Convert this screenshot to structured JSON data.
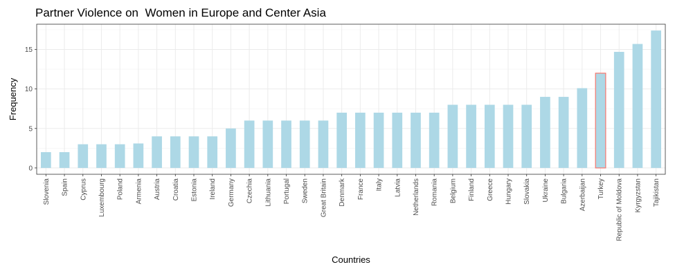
{
  "chart_data": {
    "type": "bar",
    "title": "Partner Violence on  Women in Europe and Center Asia",
    "xlabel": "Countries",
    "ylabel": "Frequency",
    "ylim": [
      -0.8,
      18.2
    ],
    "yticks": [
      0,
      5,
      10,
      15
    ],
    "grid": true,
    "bar_color": "#add8e6",
    "highlight_outline_color": "#f8766d",
    "categories": [
      "Slovenia",
      "Spain",
      "Cyprus",
      "Luxembourg",
      "Poland",
      "Armenia",
      "Austria",
      "Croatia",
      "Estonia",
      "Ireland",
      "Germany",
      "Czechia",
      "Lithuania",
      "Portugal",
      "Sweden",
      "Great Britain",
      "Denmark",
      "France",
      "Italy",
      "Latvia",
      "Netherlands",
      "Romania",
      "Belgium",
      "Finland",
      "Greece",
      "Hungary",
      "Slovakia",
      "Ukraine",
      "Bulgaria",
      "Azerbaijan",
      "Turkey",
      "Republic of Moldova",
      "Kyrgyzstan",
      "Tajikistan"
    ],
    "values": [
      2,
      2,
      3,
      3,
      3,
      3.1,
      4,
      4,
      4,
      4,
      5,
      6,
      6,
      6,
      6,
      6,
      7,
      7,
      7,
      7,
      7,
      7,
      8,
      8,
      8,
      8,
      8,
      9,
      9,
      10.1,
      12,
      14.7,
      15.7,
      17.4
    ],
    "highlighted": [
      "Turkey"
    ]
  }
}
